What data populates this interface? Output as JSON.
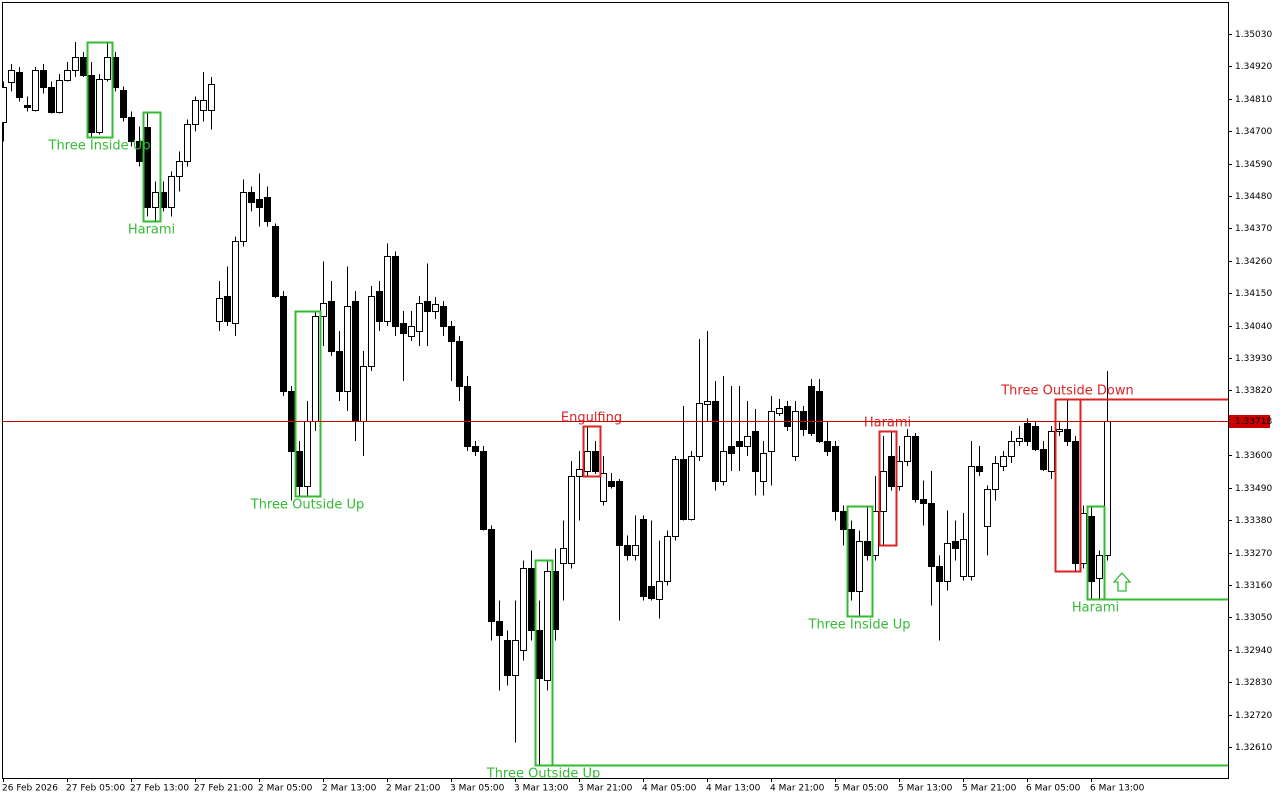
{
  "chart_data": {
    "type": "candlestick",
    "up_color": "#ffffff",
    "down_color": "#000000",
    "ylim": [
      1.32505,
      1.35138
    ],
    "yticks": [
      {
        "value": 1.3503,
        "label": "1.35030"
      },
      {
        "value": 1.3492,
        "label": "1.34920"
      },
      {
        "value": 1.3481,
        "label": "1.34810"
      },
      {
        "value": 1.347,
        "label": "1.34700"
      },
      {
        "value": 1.3459,
        "label": "1.34590"
      },
      {
        "value": 1.3448,
        "label": "1.34480"
      },
      {
        "value": 1.3437,
        "label": "1.34370"
      },
      {
        "value": 1.3426,
        "label": "1.34260"
      },
      {
        "value": 1.3415,
        "label": "1.34150"
      },
      {
        "value": 1.3404,
        "label": "1.34040"
      },
      {
        "value": 1.3393,
        "label": "1.33930"
      },
      {
        "value": 1.3382,
        "label": "1.33820"
      },
      {
        "value": 1.336,
        "label": "1.33600"
      },
      {
        "value": 1.3349,
        "label": "1.33490"
      },
      {
        "value": 1.3338,
        "label": "1.33380"
      },
      {
        "value": 1.3327,
        "label": "1.33270"
      },
      {
        "value": 1.3316,
        "label": "1.33160"
      },
      {
        "value": 1.3305,
        "label": "1.33050"
      },
      {
        "value": 1.3294,
        "label": "1.32940"
      },
      {
        "value": 1.3283,
        "label": "1.32830"
      },
      {
        "value": 1.3272,
        "label": "1.32720"
      },
      {
        "value": 1.3261,
        "label": "1.32610"
      }
    ],
    "time_labels": [
      "26 Feb 2026",
      "27 Feb 05:00",
      "27 Feb 13:00",
      "27 Feb 21:00",
      "2 Mar 05:00",
      "2 Mar 13:00",
      "2 Mar 21:00",
      "3 Mar 05:00",
      "3 Mar 13:00",
      "3 Mar 21:00",
      "4 Mar 05:00",
      "4 Mar 13:00",
      "4 Mar 21:00",
      "5 Mar 05:00",
      "5 Mar 13:00",
      "5 Mar 21:00",
      "6 Mar 05:00",
      "6 Mar 13:00"
    ],
    "current_price": 1.33718,
    "current_price_color": "#cc0000",
    "candles": [
      [
        1.34732,
        1.34868,
        1.34665,
        1.34851
      ],
      [
        1.34868,
        1.34928,
        1.34834,
        1.34908
      ],
      [
        1.34901,
        1.34918,
        1.348,
        1.34817
      ],
      [
        1.3479,
        1.34817,
        1.34766,
        1.34783
      ],
      [
        1.34773,
        1.34918,
        1.34766,
        1.34908
      ],
      [
        1.34908,
        1.34928,
        1.34827,
        1.34851
      ],
      [
        1.34851,
        1.34868,
        1.34759,
        1.34766
      ],
      [
        1.34766,
        1.34894,
        1.34759,
        1.34874
      ],
      [
        1.34874,
        1.34935,
        1.34868,
        1.34908
      ],
      [
        1.34908,
        1.35003,
        1.34884,
        1.34952
      ],
      [
        1.34952,
        1.34969,
        1.34884,
        1.34891
      ],
      [
        1.34891,
        1.34935,
        1.34681,
        1.34698
      ],
      [
        1.34698,
        1.34894,
        1.34688,
        1.34877
      ],
      [
        1.34877,
        1.35003,
        1.34868,
        1.34952
      ],
      [
        1.34952,
        1.34969,
        1.34834,
        1.34851
      ],
      [
        1.34841,
        1.34851,
        1.34732,
        1.34749
      ],
      [
        1.34749,
        1.34766,
        1.34648,
        1.34665
      ],
      [
        1.34665,
        1.34715,
        1.3458,
        1.34597
      ],
      [
        1.34715,
        1.34766,
        1.34411,
        1.34444
      ],
      [
        1.34444,
        1.34529,
        1.34394,
        1.34495
      ],
      [
        1.34495,
        1.34529,
        1.34428,
        1.34444
      ],
      [
        1.34444,
        1.34563,
        1.34411,
        1.34546
      ],
      [
        1.34546,
        1.34631,
        1.34495,
        1.34597
      ],
      [
        1.34597,
        1.34739,
        1.3458,
        1.34725
      ],
      [
        1.34725,
        1.34817,
        1.34698,
        1.34807
      ],
      [
        1.34773,
        1.34901,
        1.34732,
        1.34807
      ],
      [
        1.34773,
        1.34884,
        1.34705,
        1.34861
      ],
      [
        1.34055,
        1.34191,
        1.34021,
        1.34133
      ],
      [
        1.3414,
        1.34241,
        1.34038,
        1.34055
      ],
      [
        1.34048,
        1.34343,
        1.34004,
        1.34326
      ],
      [
        1.34326,
        1.34536,
        1.34309,
        1.34495
      ],
      [
        1.34495,
        1.34512,
        1.34428,
        1.34461
      ],
      [
        1.34468,
        1.34556,
        1.34377,
        1.34444
      ],
      [
        1.34478,
        1.34512,
        1.34377,
        1.34394
      ],
      [
        1.34377,
        1.34387,
        1.34133,
        1.3414
      ],
      [
        1.3414,
        1.34157,
        1.33801,
        1.33818
      ],
      [
        1.33818,
        1.33835,
        1.33446,
        1.33615
      ],
      [
        1.33615,
        1.33649,
        1.33463,
        1.33497
      ],
      [
        1.33497,
        1.33784,
        1.33463,
        1.33717
      ],
      [
        1.33717,
        1.34089,
        1.33683,
        1.34072
      ],
      [
        1.34072,
        1.34258,
        1.33971,
        1.34116
      ],
      [
        1.34123,
        1.34191,
        1.33937,
        1.33954
      ],
      [
        1.33954,
        1.34021,
        1.33784,
        1.33818
      ],
      [
        1.33818,
        1.34241,
        1.33751,
        1.34106
      ],
      [
        1.34123,
        1.34157,
        1.33649,
        1.33717
      ],
      [
        1.33717,
        1.33954,
        1.33598,
        1.33903
      ],
      [
        1.33903,
        1.34174,
        1.33886,
        1.3414
      ],
      [
        1.34157,
        1.34191,
        1.34021,
        1.34055
      ],
      [
        1.34055,
        1.34319,
        1.34038,
        1.34275
      ],
      [
        1.34275,
        1.34292,
        1.34004,
        1.34038
      ],
      [
        1.34048,
        1.34089,
        1.33852,
        1.34014
      ],
      [
        1.34004,
        1.34089,
        1.33988,
        1.34038
      ],
      [
        1.34021,
        1.3414,
        1.33971,
        1.34116
      ],
      [
        1.34123,
        1.34251,
        1.33971,
        1.34089
      ],
      [
        1.34089,
        1.34137,
        1.34062,
        1.34113
      ],
      [
        1.34106,
        1.34123,
        1.34004,
        1.34038
      ],
      [
        1.34038,
        1.34055,
        1.33852,
        1.33988
      ],
      [
        1.33988,
        1.34004,
        1.33784,
        1.33835
      ],
      [
        1.33835,
        1.33869,
        1.33615,
        1.33632
      ],
      [
        1.33632,
        1.33649,
        1.33598,
        1.33615
      ],
      [
        1.33615,
        1.33632,
        1.33344,
        1.33351
      ],
      [
        1.33351,
        1.33361,
        1.32972,
        1.33039
      ],
      [
        1.33039,
        1.33107,
        1.32802,
        1.32989
      ],
      [
        1.32972,
        1.33006,
        1.32819,
        1.32853
      ],
      [
        1.32853,
        1.33107,
        1.32626,
        1.32972
      ],
      [
        1.32938,
        1.33243,
        1.32904,
        1.33216
      ],
      [
        1.33216,
        1.33277,
        1.32972,
        1.33006
      ],
      [
        1.33006,
        1.33107,
        1.32549,
        1.32843
      ],
      [
        1.32836,
        1.33243,
        1.32802,
        1.33209
      ],
      [
        1.33209,
        1.33284,
        1.32972,
        1.33012
      ],
      [
        1.33236,
        1.33378,
        1.33107,
        1.33284
      ],
      [
        1.33236,
        1.33581,
        1.33216,
        1.3353
      ],
      [
        1.3353,
        1.33615,
        1.33378,
        1.33554
      ],
      [
        1.33547,
        1.337,
        1.3353,
        1.33615
      ],
      [
        1.33615,
        1.33649,
        1.33537,
        1.33547
      ],
      [
        1.33446,
        1.33598,
        1.33429,
        1.3354
      ],
      [
        1.33514,
        1.3354,
        1.33487,
        1.33497
      ],
      [
        1.33514,
        1.3352,
        1.33039,
        1.33294
      ],
      [
        1.33294,
        1.33327,
        1.33243,
        1.3326
      ],
      [
        1.3326,
        1.33395,
        1.33243,
        1.33294
      ],
      [
        1.33385,
        1.33395,
        1.33107,
        1.33121
      ],
      [
        1.33158,
        1.33378,
        1.33107,
        1.33117
      ],
      [
        1.33114,
        1.3331,
        1.33046,
        1.33175
      ],
      [
        1.33175,
        1.33344,
        1.33158,
        1.33327
      ],
      [
        1.33327,
        1.33598,
        1.3331,
        1.33588
      ],
      [
        1.33588,
        1.33767,
        1.33378,
        1.33385
      ],
      [
        1.33385,
        1.33615,
        1.33378,
        1.33598
      ],
      [
        1.33598,
        1.33994,
        1.33581,
        1.33778
      ],
      [
        1.33774,
        1.34021,
        1.33717,
        1.33784
      ],
      [
        1.33784,
        1.33852,
        1.3348,
        1.33514
      ],
      [
        1.33514,
        1.33869,
        1.33497,
        1.33615
      ],
      [
        1.33632,
        1.33835,
        1.33547,
        1.33608
      ],
      [
        1.33649,
        1.33835,
        1.33547,
        1.33632
      ],
      [
        1.33632,
        1.33784,
        1.33598,
        1.33666
      ],
      [
        1.33683,
        1.33757,
        1.33463,
        1.33547
      ],
      [
        1.33514,
        1.33649,
        1.33463,
        1.33608
      ],
      [
        1.33615,
        1.33801,
        1.33497,
        1.33751
      ],
      [
        1.33744,
        1.33791,
        1.33734,
        1.33761
      ],
      [
        1.33767,
        1.33784,
        1.33683,
        1.337
      ],
      [
        1.33598,
        1.33784,
        1.33581,
        1.33751
      ],
      [
        1.33751,
        1.33767,
        1.33666,
        1.3369
      ],
      [
        1.33835,
        1.33859,
        1.33666,
        1.33676
      ],
      [
        1.33818,
        1.33859,
        1.33642,
        1.33649
      ],
      [
        1.33649,
        1.33717,
        1.33598,
        1.33615
      ],
      [
        1.33632,
        1.33649,
        1.33378,
        1.33412
      ],
      [
        1.33412,
        1.33429,
        1.33294,
        1.33351
      ],
      [
        1.33351,
        1.33378,
        1.33107,
        1.33141
      ],
      [
        1.33141,
        1.33344,
        1.33056,
        1.3331
      ],
      [
        1.3331,
        1.33429,
        1.33243,
        1.3326
      ],
      [
        1.3326,
        1.3353,
        1.33243,
        1.33412
      ],
      [
        1.33412,
        1.33666,
        1.33294,
        1.33547
      ],
      [
        1.33598,
        1.33683,
        1.3348,
        1.33497
      ],
      [
        1.33497,
        1.33632,
        1.3348,
        1.33581
      ],
      [
        1.33581,
        1.3369,
        1.33564,
        1.33666
      ],
      [
        1.33666,
        1.33676,
        1.33439,
        1.33453
      ],
      [
        1.33453,
        1.33514,
        1.33361,
        1.33439
      ],
      [
        1.33439,
        1.33547,
        1.3309,
        1.33226
      ],
      [
        1.33226,
        1.3326,
        1.32972,
        1.33175
      ],
      [
        1.33175,
        1.33412,
        1.33141,
        1.33304
      ],
      [
        1.3331,
        1.33378,
        1.33243,
        1.33284
      ],
      [
        1.33192,
        1.33405,
        1.33175,
        1.33317
      ],
      [
        1.33192,
        1.33649,
        1.33175,
        1.33564
      ],
      [
        1.33564,
        1.33632,
        1.3353,
        1.33547
      ],
      [
        1.33361,
        1.33497,
        1.3326,
        1.33487
      ],
      [
        1.33487,
        1.33598,
        1.33446,
        1.33574
      ],
      [
        1.33564,
        1.33615,
        1.33547,
        1.33598
      ],
      [
        1.33598,
        1.33683,
        1.33574,
        1.33649
      ],
      [
        1.33649,
        1.337,
        1.33632,
        1.33659
      ],
      [
        1.3371,
        1.33724,
        1.33632,
        1.33649
      ],
      [
        1.337,
        1.33717,
        1.33615,
        1.33622
      ],
      [
        1.33622,
        1.33649,
        1.33547,
        1.33554
      ],
      [
        1.33547,
        1.337,
        1.3352,
        1.33683
      ],
      [
        1.33683,
        1.33717,
        1.33666,
        1.3369
      ],
      [
        1.3369,
        1.33791,
        1.33632,
        1.33649
      ],
      [
        1.33649,
        1.33666,
        1.33209,
        1.33233
      ],
      [
        1.33233,
        1.33429,
        1.33216,
        1.33405
      ],
      [
        1.33395,
        1.33429,
        1.33114,
        1.33175
      ],
      [
        1.33182,
        1.33277,
        1.33114,
        1.3326
      ],
      [
        1.3326,
        1.33886,
        1.33243,
        1.33718
      ]
    ],
    "patterns": [
      {
        "label": "Three Inside Up",
        "range": [
          11,
          13
        ],
        "color": "#33bb33",
        "side": "below",
        "extend": false
      },
      {
        "label": "Harami",
        "range": [
          18,
          19
        ],
        "color": "#33bb33",
        "side": "below",
        "extend": false
      },
      {
        "label": "Three Outside Up",
        "range": [
          37,
          39
        ],
        "color": "#33bb33",
        "side": "below",
        "extend": false
      },
      {
        "label": "Three Outside Up",
        "range": [
          67,
          68
        ],
        "color": "#33bb33",
        "side": "below",
        "extend": true
      },
      {
        "label": "Engulfing",
        "range": [
          73,
          74
        ],
        "color": "#dd2222",
        "side": "above",
        "extend": false
      },
      {
        "label": "Three Inside Up",
        "range": [
          106,
          108
        ],
        "color": "#33bb33",
        "side": "below",
        "extend": false
      },
      {
        "label": "Harami",
        "range": [
          110,
          111
        ],
        "color": "#dd2222",
        "side": "above",
        "extend": false
      },
      {
        "label": "Three Outside Down",
        "range": [
          132,
          134
        ],
        "color": "#dd2222",
        "side": "above",
        "extend": true
      },
      {
        "label": "Harami",
        "range": [
          136,
          137
        ],
        "color": "#33bb33",
        "side": "below",
        "extend": true
      }
    ]
  }
}
